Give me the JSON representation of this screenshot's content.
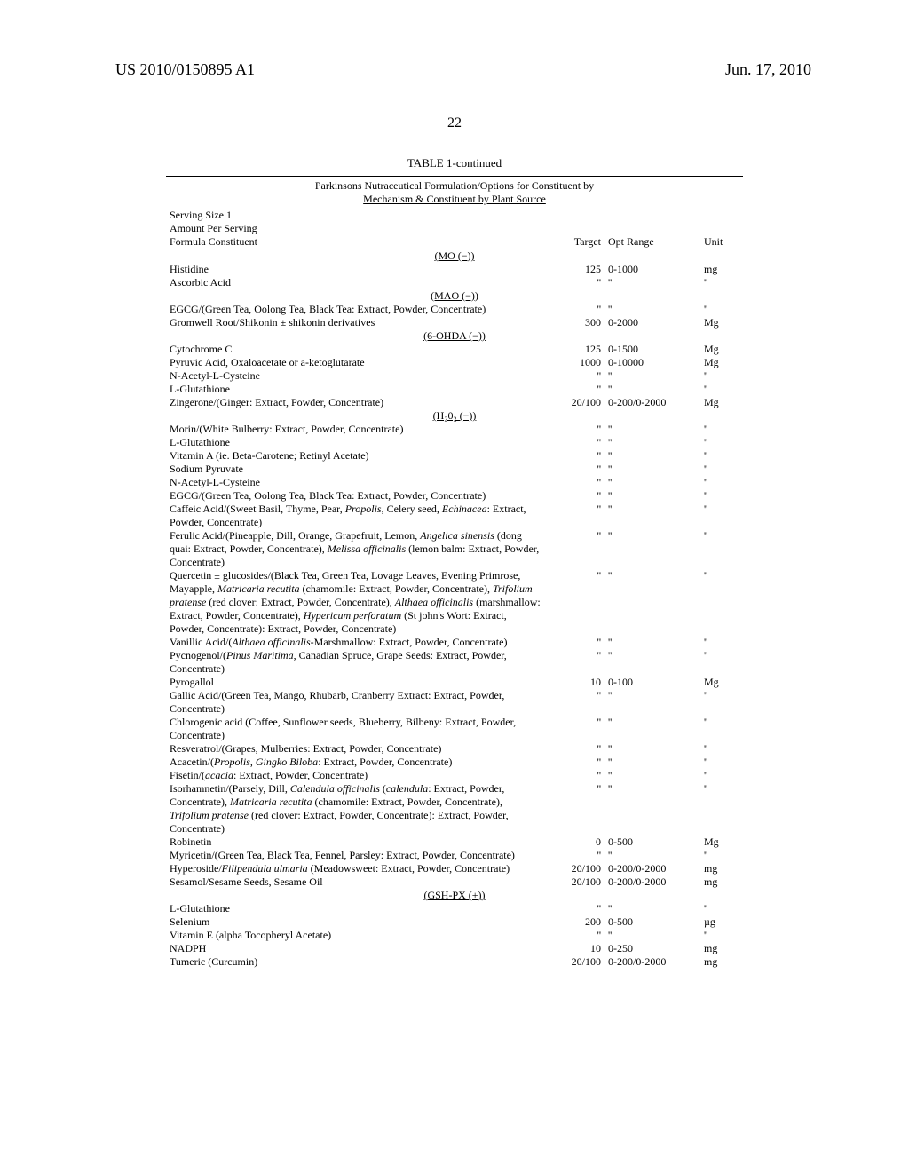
{
  "header": {
    "pub_no": "US 2010/0150895 A1",
    "date": "Jun. 17, 2010",
    "page_no": "22"
  },
  "table": {
    "title": "TABLE 1-continued",
    "caption_l1": "Parkinsons Nutraceutical Formulation/Options for Constituent by",
    "caption_l2": "Mechanism & Constituent by Plant Source",
    "serving_l1": "Serving Size 1",
    "serving_l2": "Amount Per Serving",
    "col_constituent": "Formula Constituent",
    "col_target": "Target",
    "col_range": "Opt Range",
    "col_unit": "Unit"
  },
  "sections": [
    {
      "label": "(MO (−))",
      "rows": [
        {
          "c": "Histidine",
          "t": "125",
          "r": "0-1000",
          "u": "mg"
        },
        {
          "c": "Ascorbic Acid",
          "t": "''",
          "r": "''",
          "u": "''"
        }
      ]
    },
    {
      "label": "(MAO (−))",
      "rows": [
        {
          "c": "EGCG/(Green Tea, Oolong Tea, Black Tea: Extract, Powder, Concentrate)",
          "t": "''",
          "r": "''",
          "u": "''"
        },
        {
          "c": "Gromwell Root/Shikonin ± shikonin derivatives",
          "t": "300",
          "r": "0-2000",
          "u": "Mg"
        }
      ]
    },
    {
      "label": "(6-OHDA (−))",
      "rows": [
        {
          "c": "Cytochrome C",
          "t": "125",
          "r": "0-1500",
          "u": "Mg"
        },
        {
          "c": "Pyruvic Acid, Oxaloacetate or a-ketoglutarate",
          "t": "1000",
          "r": "0-10000",
          "u": "Mg"
        },
        {
          "c": "N-Acetyl-L-Cysteine",
          "t": "''",
          "r": "''",
          "u": "''"
        },
        {
          "c": "L-Glutathione",
          "t": "''",
          "r": "''",
          "u": "''"
        },
        {
          "c": "Zingerone/(Ginger: Extract, Powder, Concentrate)",
          "t": "20/100",
          "r": "0-200/0-2000",
          "u": "Mg"
        }
      ]
    },
    {
      "label": "(H₂0₂ (−))",
      "rows": [
        {
          "c": "Morin/(White Bulberry: Extract, Powder, Concentrate)",
          "t": "''",
          "r": "''",
          "u": "''"
        },
        {
          "c": "L-Glutathione",
          "t": "''",
          "r": "''",
          "u": "''"
        },
        {
          "c": "Vitamin A (ie. Beta-Carotene; Retinyl Acetate)",
          "t": "''",
          "r": "''",
          "u": "''"
        },
        {
          "c": "Sodium Pyruvate",
          "t": "''",
          "r": "''",
          "u": "''"
        },
        {
          "c": "N-Acetyl-L-Cysteine",
          "t": "''",
          "r": "''",
          "u": "''"
        },
        {
          "c": "EGCG/(Green Tea, Oolong Tea, Black Tea: Extract, Powder, Concentrate)",
          "t": "''",
          "r": "''",
          "u": "''"
        },
        {
          "c": "Caffeic Acid/(Sweet Basil, Thyme, Pear, <i>Propolis</i>, Celery seed, <i>Echinacea</i>: Extract, Powder, Concentrate)",
          "t": "''",
          "r": "''",
          "u": "''"
        },
        {
          "c": "Ferulic Acid/(Pineapple, Dill, Orange, Grapefruit, Lemon, <i>Angelica sinensis</i> (dong quai: Extract, Powder, Concentrate), <i>Melissa officinalis</i> (lemon balm: Extract, Powder, Concentrate)",
          "t": "''",
          "r": "''",
          "u": "''"
        },
        {
          "c": "Quercetin ± glucosides/(Black Tea, Green Tea, Lovage Leaves, Evening Primrose, Mayapple, <i>Matricaria recutita</i> (chamomile: Extract, Powder, Concentrate), <i>Trifolium pratense</i> (red clover: Extract, Powder, Concentrate), <i>Althaea officinalis</i> (marshmallow: Extract, Powder, Concentrate), <i>Hypericum perforatum</i> (St john's Wort: Extract, Powder, Concentrate): Extract, Powder, Concentrate)",
          "t": "''",
          "r": "''",
          "u": "''"
        },
        {
          "c": "Vanillic Acid/(<i>Althaea officinalis</i>-Marshmallow: Extract, Powder, Concentrate)",
          "t": "''",
          "r": "''",
          "u": "''"
        },
        {
          "c": "Pycnogenol/(<i>Pinus Maritima</i>, Canadian Spruce, Grape Seeds: Extract, Powder, Concentrate)",
          "t": "''",
          "r": "''",
          "u": "''"
        },
        {
          "c": "Pyrogallol",
          "t": "10",
          "r": "0-100",
          "u": "Mg"
        },
        {
          "c": "Gallic Acid/(Green Tea, Mango, Rhubarb, Cranberry Extract: Extract, Powder, Concentrate)",
          "t": "''",
          "r": "''",
          "u": "''"
        },
        {
          "c": "Chlorogenic acid (Coffee, Sunflower seeds, Blueberry, Bilbeny: Extract, Powder, Concentrate)",
          "t": "''",
          "r": "''",
          "u": "''"
        },
        {
          "c": "Resveratrol/(Grapes, Mulberries: Extract, Powder, Concentrate)",
          "t": "''",
          "r": "''",
          "u": "''"
        },
        {
          "c": "Acacetin/(<i>Propolis, Gingko Biloba</i>: Extract, Powder, Concentrate)",
          "t": "''",
          "r": "''",
          "u": "''"
        },
        {
          "c": "Fisetin/(<i>acacia</i>: Extract, Powder, Concentrate)",
          "t": "''",
          "r": "''",
          "u": "''"
        },
        {
          "c": "Isorhamnetin/(Parsely, Dill, <i>Calendula officinalis</i> (<i>calendula</i>: Extract, Powder, Concentrate), <i>Matricaria recutita</i> (chamomile: Extract, Powder, Concentrate), <i>Trifolium pratense</i> (red clover: Extract, Powder, Concentrate): Extract, Powder, Concentrate)",
          "t": "''",
          "r": "''",
          "u": "''"
        },
        {
          "c": "Robinetin",
          "t": "0",
          "r": "0-500",
          "u": "Mg"
        },
        {
          "c": "Myricetin/(Green Tea, Black Tea, Fennel, Parsley: Extract, Powder, Concentrate)",
          "t": "''",
          "r": "''",
          "u": "''"
        },
        {
          "c": "Hyperoside/<i>Filipendula ulmaria</i> (Meadowsweet: Extract, Powder, Concentrate)",
          "t": "20/100",
          "r": "0-200/0-2000",
          "u": "mg"
        },
        {
          "c": "Sesamol/Sesame Seeds, Sesame Oil",
          "t": "20/100",
          "r": "0-200/0-2000",
          "u": "mg"
        }
      ]
    },
    {
      "label": "(GSH-PX (+))",
      "rows": [
        {
          "c": "L-Glutathione",
          "t": "''",
          "r": "''",
          "u": "''"
        },
        {
          "c": "Selenium",
          "t": "200",
          "r": "0-500",
          "u": "µg"
        },
        {
          "c": "Vitamin E (alpha Tocopheryl Acetate)",
          "t": "''",
          "r": "''",
          "u": "''"
        },
        {
          "c": "NADPH",
          "t": "10",
          "r": "0-250",
          "u": "mg"
        },
        {
          "c": "Tumeric (Curcumin)",
          "t": "20/100",
          "r": "0-200/0-2000",
          "u": "mg"
        }
      ]
    }
  ]
}
